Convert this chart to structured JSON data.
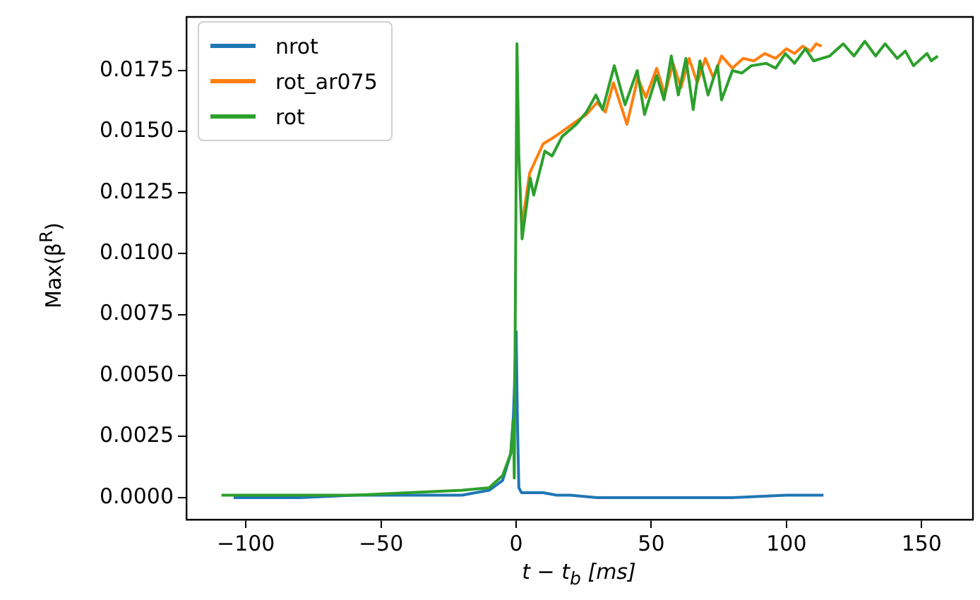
{
  "chart_data": {
    "type": "line",
    "xlabel": "t − t$_{b}$ [ms]",
    "ylabel": "Max(β$^{R}$)",
    "xlim": [
      -122,
      169
    ],
    "ylim": [
      -0.0009,
      0.0197
    ],
    "xticks": [
      {
        "value": -100,
        "label": "−100"
      },
      {
        "value": -50,
        "label": "−50"
      },
      0,
      50,
      100,
      150
    ],
    "yticks": [
      {
        "value": 0,
        "label": "0.0000"
      },
      {
        "value": 0.0025,
        "label": "0.0025"
      },
      {
        "value": 0.005,
        "label": "0.0050"
      },
      {
        "value": 0.0075,
        "label": "0.0075"
      },
      {
        "value": 0.01,
        "label": "0.0100"
      },
      {
        "value": 0.0125,
        "label": "0.0125"
      },
      {
        "value": 0.015,
        "label": "0.0150"
      },
      {
        "value": 0.0175,
        "label": "0.0175"
      }
    ],
    "grid": false,
    "legend": "top left",
    "marker": "none",
    "line_style": "solid",
    "series": [
      {
        "name": "nrot",
        "color": "#1f77b4",
        "x": [
          -104.5,
          -80,
          -60,
          -40,
          -20,
          -10,
          -5,
          -2,
          -1,
          -0.5,
          0,
          0.5,
          1,
          2,
          5,
          10,
          15,
          20,
          30,
          50,
          80,
          100,
          113.7
        ],
        "values": [
          0.0,
          0.0,
          0.0001,
          0.0001,
          0.0001,
          0.0003,
          0.0007,
          0.0018,
          0.0034,
          0.005,
          0.0068,
          0.003,
          0.0004,
          0.0002,
          0.0002,
          0.0002,
          0.0001,
          0.0001,
          0.0,
          0.0,
          0.0,
          0.0001,
          0.0001
        ]
      },
      {
        "name": "rot_ar075",
        "color": "#ff7f0e",
        "x": [
          2.2,
          5,
          10,
          13,
          17,
          22,
          26,
          30,
          33,
          36,
          41,
          45,
          48,
          52,
          55,
          58,
          61,
          64,
          67,
          70,
          73,
          76,
          80,
          84,
          88,
          92,
          96,
          100,
          103,
          106,
          109,
          111,
          113
        ],
        "values": [
          0.0112,
          0.0133,
          0.0145,
          0.0147,
          0.015,
          0.0154,
          0.0157,
          0.0162,
          0.0158,
          0.017,
          0.0153,
          0.0172,
          0.0164,
          0.0176,
          0.0165,
          0.0178,
          0.0168,
          0.018,
          0.017,
          0.018,
          0.0172,
          0.0181,
          0.0176,
          0.018,
          0.0179,
          0.0182,
          0.018,
          0.0184,
          0.0182,
          0.0185,
          0.0183,
          0.0186,
          0.0185
        ]
      },
      {
        "name": "rot",
        "color": "#2ca02c",
        "x": [
          -109,
          -80,
          -60,
          -40,
          -20,
          -10,
          -5,
          -2,
          -1,
          -0.7,
          0.3,
          1,
          2.2,
          5.2,
          6.5,
          10.6,
          13.3,
          17,
          22.3,
          26,
          29.5,
          32,
          36.3,
          40.3,
          44.8,
          47.5,
          52,
          54.7,
          57.4,
          60,
          62.8,
          65.5,
          68,
          71,
          74.5,
          76,
          80,
          83.5,
          87,
          92.5,
          96,
          99.6,
          103,
          107,
          110,
          116,
          121,
          125,
          129,
          133,
          136.5,
          141,
          144,
          147,
          152,
          153.6,
          156
        ],
        "values": [
          0.0001,
          0.0001,
          0.0001,
          0.0002,
          0.0003,
          0.0004,
          0.0009,
          0.0018,
          0.0032,
          0.0008,
          0.0186,
          0.014,
          0.0106,
          0.0131,
          0.0124,
          0.0142,
          0.014,
          0.0148,
          0.0153,
          0.0158,
          0.0165,
          0.0159,
          0.0177,
          0.0161,
          0.0175,
          0.0157,
          0.0173,
          0.0163,
          0.0181,
          0.0165,
          0.018,
          0.0159,
          0.0179,
          0.0165,
          0.0177,
          0.0163,
          0.0175,
          0.0174,
          0.0177,
          0.0178,
          0.0176,
          0.0182,
          0.0178,
          0.0184,
          0.0179,
          0.0181,
          0.0186,
          0.0181,
          0.0187,
          0.0181,
          0.0186,
          0.018,
          0.0183,
          0.0177,
          0.0182,
          0.0179,
          0.0181
        ]
      }
    ]
  }
}
